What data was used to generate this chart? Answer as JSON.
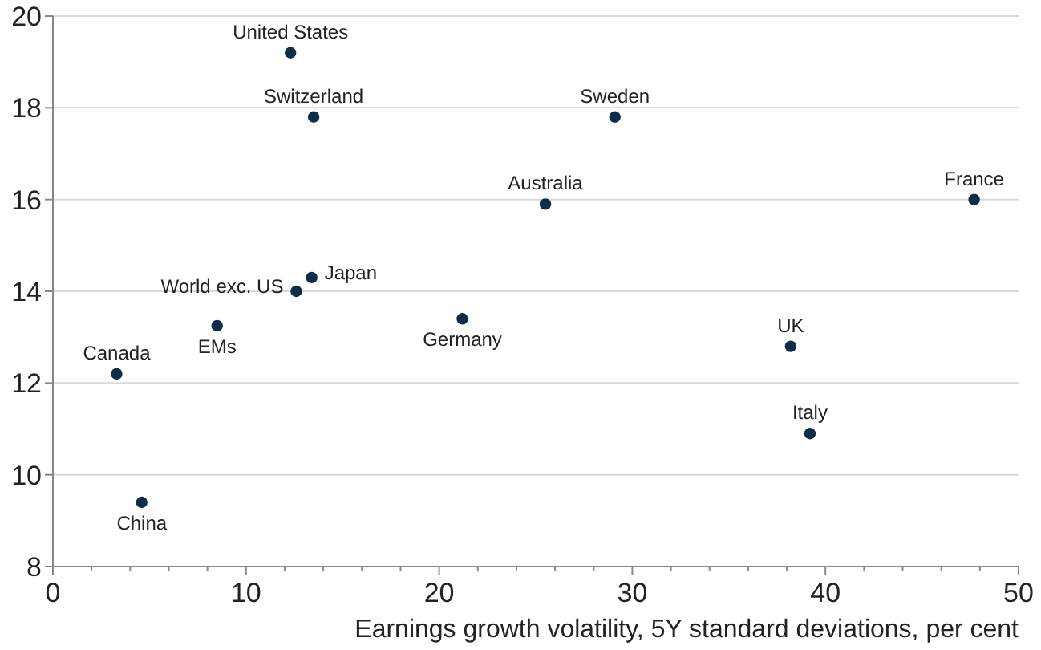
{
  "chart_data": {
    "type": "scatter",
    "xlabel": "Earnings growth volatility, 5Y standard deviations, per cent",
    "xlim": [
      0,
      50
    ],
    "ylim": [
      8,
      20
    ],
    "xticks": [
      0,
      {
        "value": 2,
        "label": null
      },
      {
        "value": 4,
        "label": null
      },
      {
        "value": 6,
        "label": null
      },
      {
        "value": 8,
        "label": null
      },
      10,
      {
        "value": 12,
        "label": null
      },
      {
        "value": 14,
        "label": null
      },
      {
        "value": 16,
        "label": null
      },
      {
        "value": 18,
        "label": null
      },
      20,
      {
        "value": 22,
        "label": null
      },
      {
        "value": 24,
        "label": null
      },
      {
        "value": 26,
        "label": null
      },
      {
        "value": 28,
        "label": null
      },
      30,
      {
        "value": 32,
        "label": null
      },
      {
        "value": 34,
        "label": null
      },
      {
        "value": 36,
        "label": null
      },
      {
        "value": 38,
        "label": null
      },
      40,
      {
        "value": 42,
        "label": null
      },
      {
        "value": 44,
        "label": null
      },
      {
        "value": 46,
        "label": null
      },
      {
        "value": 48,
        "label": null
      },
      50
    ],
    "yticks": [
      8,
      10,
      12,
      14,
      16,
      18,
      20
    ],
    "grid": "y",
    "marker": "circle",
    "series": [
      {
        "color": "#0d2d4a",
        "x": [
          12.3,
          13.5,
          29.1,
          25.5,
          47.7,
          13.4,
          12.6,
          8.5,
          21.2,
          38.2,
          3.3,
          39.2,
          4.6
        ],
        "values": [
          19.2,
          17.8,
          17.8,
          15.9,
          16.0,
          14.3,
          14.0,
          13.25,
          13.4,
          12.8,
          12.2,
          10.9,
          9.4
        ]
      }
    ],
    "annotations": [
      {
        "text": "United States",
        "x": 12.3,
        "y": 19.2
      },
      {
        "text": "Switzerland",
        "x": 13.5,
        "y": 17.8
      },
      {
        "text": "Sweden",
        "x": 29.1,
        "y": 17.8
      },
      {
        "text": "Australia",
        "x": 25.5,
        "y": 15.9
      },
      {
        "text": "France",
        "x": 47.7,
        "y": 16.0
      },
      {
        "text": "Japan",
        "x": 13.4,
        "y": 14.3
      },
      {
        "text": "World exc. US",
        "x": 12.6,
        "y": 14.0
      },
      {
        "text": "EMs",
        "x": 8.5,
        "y": 13.25
      },
      {
        "text": "Germany",
        "x": 21.2,
        "y": 13.4
      },
      {
        "text": "UK",
        "x": 38.2,
        "y": 12.8
      },
      {
        "text": "Canada",
        "x": 3.3,
        "y": 12.2
      },
      {
        "text": "Italy",
        "x": 39.2,
        "y": 10.9
      },
      {
        "text": "China",
        "x": 4.6,
        "y": 9.4
      }
    ]
  }
}
